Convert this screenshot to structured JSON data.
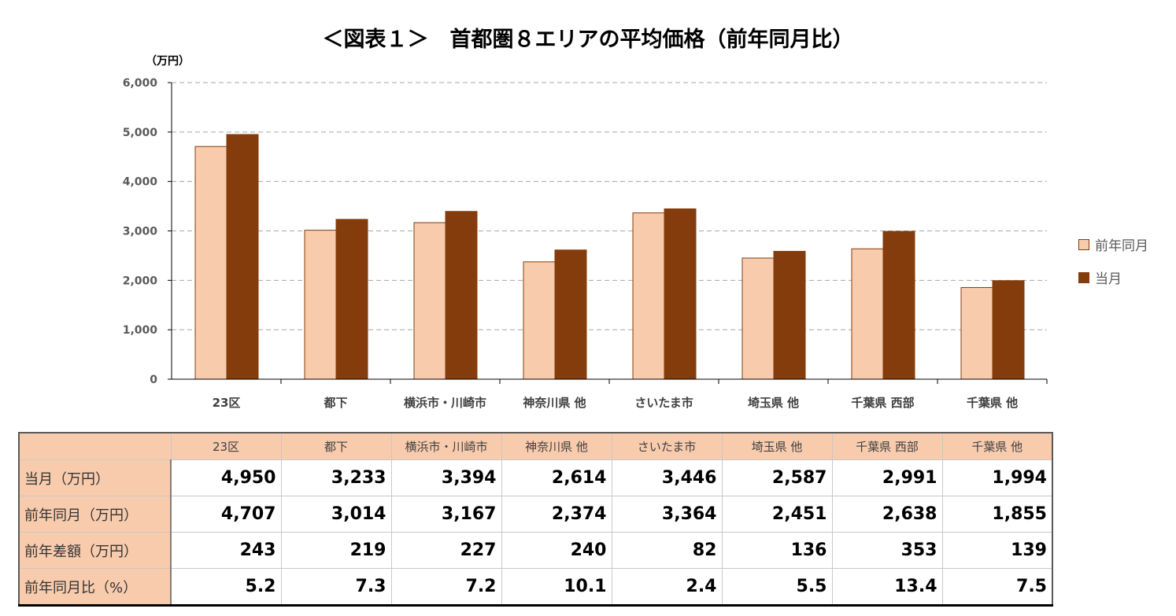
{
  "chart_data": {
    "type": "bar",
    "title": "＜図表１＞　首都圏８エリアの平均価格（前年同月比）",
    "ylabel": "（万円）",
    "ylim": [
      0,
      6000
    ],
    "yticks": [
      "0",
      "1,000",
      "2,000",
      "3,000",
      "4,000",
      "5,000",
      "6,000"
    ],
    "categories": [
      "23区",
      "都下",
      "横浜市・川崎市",
      "神奈川県 他",
      "さいたま市",
      "埼玉県 他",
      "千葉県 西部",
      "千葉県 他"
    ],
    "series": [
      {
        "name": "前年同月",
        "color": "#F8CBAD",
        "values": [
          4707,
          3014,
          3167,
          2374,
          3364,
          2451,
          2638,
          1855
        ]
      },
      {
        "name": "当月",
        "color": "#843C0C",
        "values": [
          4950,
          3233,
          3394,
          2614,
          3446,
          2587,
          2991,
          1994
        ]
      }
    ],
    "grid": true,
    "legend": "right"
  },
  "table": {
    "header": [
      "",
      "23区",
      "都下",
      "横浜市・川崎市",
      "神奈川県 他",
      "さいたま市",
      "埼玉県 他",
      "千葉県 西部",
      "千葉県 他"
    ],
    "rows": [
      [
        "当月（万円）",
        "4,950",
        "3,233",
        "3,394",
        "2,614",
        "3,446",
        "2,587",
        "2,991",
        "1,994"
      ],
      [
        "前年同月（万円）",
        "4,707",
        "3,014",
        "3,167",
        "2,374",
        "3,364",
        "2,451",
        "2,638",
        "1,855"
      ],
      [
        "前年差額（万円）",
        "243",
        "219",
        "227",
        "240",
        "82",
        "136",
        "353",
        "139"
      ],
      [
        "前年同月比（%）",
        "5.2",
        "7.3",
        "7.2",
        "10.1",
        "2.4",
        "5.5",
        "13.4",
        "7.5"
      ]
    ]
  }
}
